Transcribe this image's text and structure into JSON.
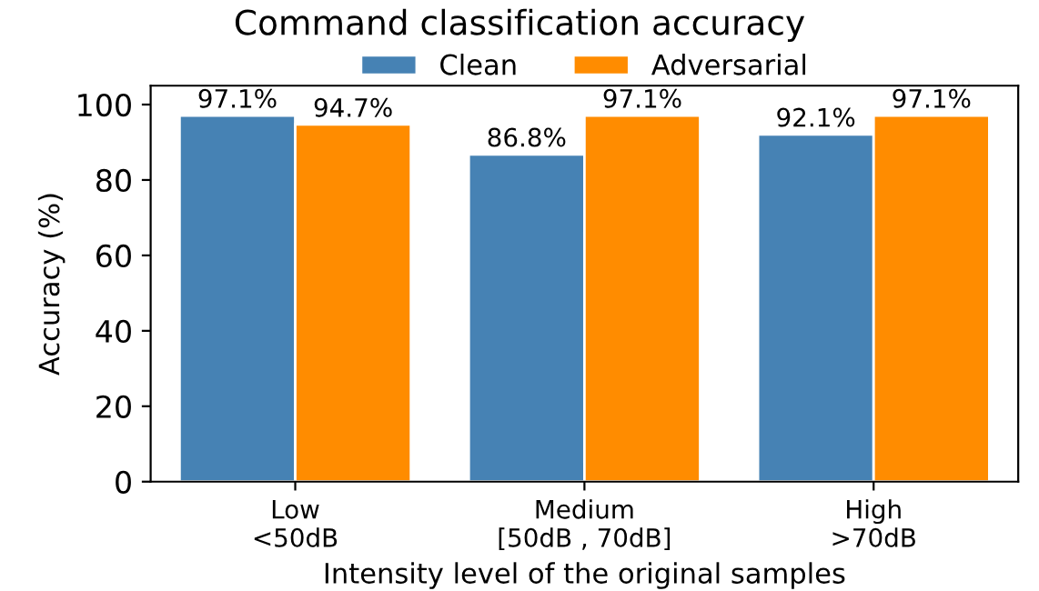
{
  "chart_data": {
    "type": "bar",
    "title": "Command classification accuracy",
    "xlabel": "Intensity level of the original samples",
    "ylabel": "Accuracy (%)",
    "categories": [
      "Low\n<50dB",
      "Medium\n[50dB , 70dB]",
      "High\n>70dB"
    ],
    "series": [
      {
        "name": "Clean",
        "color": "#4682b4",
        "values": [
          97.1,
          86.8,
          92.1
        ],
        "value_labels": [
          "97.1%",
          "86.8%",
          "92.1%"
        ]
      },
      {
        "name": "Adversarial",
        "color": "#ff8c00",
        "values": [
          94.7,
          97.1,
          97.1
        ],
        "value_labels": [
          "94.7%",
          "97.1%",
          "97.1%"
        ]
      }
    ],
    "ylim": [
      0,
      105
    ],
    "yticks": [
      0,
      20,
      40,
      60,
      80,
      100
    ],
    "grid": false,
    "legend": "top"
  }
}
